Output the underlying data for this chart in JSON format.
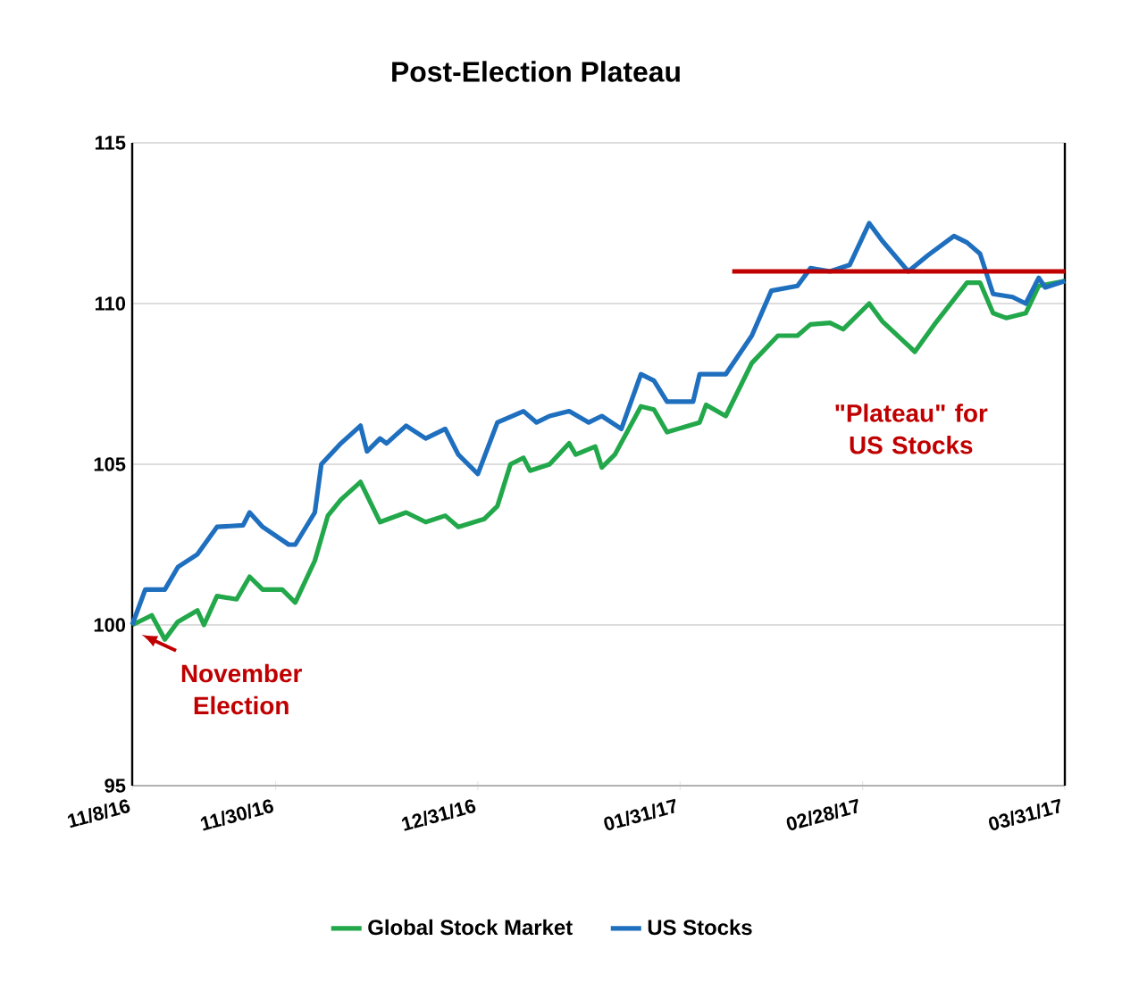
{
  "chart_data": {
    "type": "line",
    "title": "Post-Election Plateau",
    "xlim": [
      "2016-11-08",
      "2017-03-31"
    ],
    "xticks": [
      {
        "value": "2016-11-08",
        "label": "11/8/16"
      },
      {
        "value": "2016-11-30",
        "label": "11/30/16"
      },
      {
        "value": "2016-12-31",
        "label": "12/31/16"
      },
      {
        "value": "2017-01-31",
        "label": "01/31/17"
      },
      {
        "value": "2017-02-28",
        "label": "02/28/17"
      },
      {
        "value": "2017-03-31",
        "label": "03/31/17"
      }
    ],
    "ylim": [
      95,
      115
    ],
    "yticks": [
      95,
      100,
      105,
      110,
      115
    ],
    "grid": "y",
    "legend": "bottom",
    "series": [
      {
        "name": "Global Stock Market",
        "color": "#22a84a",
        "x": [
          "2016-11-08",
          "2016-11-11",
          "2016-11-13",
          "2016-11-15",
          "2016-11-18",
          "2016-11-19",
          "2016-11-21",
          "2016-11-24",
          "2016-11-26",
          "2016-11-28",
          "2016-12-01",
          "2016-12-03",
          "2016-12-06",
          "2016-12-08",
          "2016-12-10",
          "2016-12-13",
          "2016-12-16",
          "2016-12-20",
          "2016-12-23",
          "2016-12-26",
          "2016-12-28",
          "2017-01-01",
          "2017-01-03",
          "2017-01-05",
          "2017-01-07",
          "2017-01-08",
          "2017-01-11",
          "2017-01-14",
          "2017-01-15",
          "2017-01-18",
          "2017-01-19",
          "2017-01-21",
          "2017-01-25",
          "2017-01-27",
          "2017-01-29",
          "2017-02-03",
          "2017-02-04",
          "2017-02-07",
          "2017-02-11",
          "2017-02-15",
          "2017-02-18",
          "2017-02-20",
          "2017-02-23",
          "2017-02-25",
          "2017-03-01",
          "2017-03-03",
          "2017-03-08",
          "2017-03-11",
          "2017-03-16",
          "2017-03-18",
          "2017-03-20",
          "2017-03-22",
          "2017-03-25",
          "2017-03-27",
          "2017-03-31"
        ],
        "values": [
          100.0,
          100.3,
          99.55,
          100.1,
          100.45,
          100.0,
          100.9,
          100.8,
          101.5,
          101.1,
          101.1,
          100.7,
          102.0,
          103.4,
          103.9,
          104.45,
          103.2,
          103.5,
          103.2,
          103.4,
          103.05,
          103.3,
          103.7,
          105.0,
          105.2,
          104.8,
          105.0,
          105.65,
          105.3,
          105.55,
          104.9,
          105.3,
          106.8,
          106.7,
          106.0,
          106.3,
          106.85,
          106.5,
          108.15,
          109.0,
          109.0,
          109.35,
          109.4,
          109.2,
          110.0,
          109.45,
          108.5,
          109.35,
          110.65,
          110.65,
          109.7,
          109.55,
          109.7,
          110.55,
          110.7
        ]
      },
      {
        "name": "US Stocks",
        "color": "#1f6fbf",
        "x": [
          "2016-11-08",
          "2016-11-10",
          "2016-11-13",
          "2016-11-15",
          "2016-11-18",
          "2016-11-21",
          "2016-11-25",
          "2016-11-26",
          "2016-11-28",
          "2016-12-02",
          "2016-12-03",
          "2016-12-06",
          "2016-12-07",
          "2016-12-10",
          "2016-12-13",
          "2016-12-14",
          "2016-12-16",
          "2016-12-17",
          "2016-12-20",
          "2016-12-23",
          "2016-12-26",
          "2016-12-28",
          "2016-12-31",
          "2017-01-03",
          "2017-01-07",
          "2017-01-09",
          "2017-01-11",
          "2017-01-14",
          "2017-01-17",
          "2017-01-19",
          "2017-01-22",
          "2017-01-25",
          "2017-01-27",
          "2017-01-29",
          "2017-02-02",
          "2017-02-03",
          "2017-02-07",
          "2017-02-11",
          "2017-02-14",
          "2017-02-18",
          "2017-02-20",
          "2017-02-23",
          "2017-02-26",
          "2017-03-01",
          "2017-03-03",
          "2017-03-07",
          "2017-03-10",
          "2017-03-14",
          "2017-03-16",
          "2017-03-18",
          "2017-03-20",
          "2017-03-23",
          "2017-03-25",
          "2017-03-27",
          "2017-03-28",
          "2017-03-31"
        ],
        "values": [
          100.0,
          101.1,
          101.1,
          101.8,
          102.2,
          103.05,
          103.1,
          103.5,
          103.05,
          102.5,
          102.5,
          103.5,
          105.0,
          105.65,
          106.2,
          105.4,
          105.8,
          105.65,
          106.2,
          105.8,
          106.1,
          105.3,
          104.7,
          106.3,
          106.65,
          106.3,
          106.5,
          106.65,
          106.3,
          106.5,
          106.1,
          107.8,
          107.6,
          106.95,
          106.95,
          107.8,
          107.8,
          109.0,
          110.4,
          110.55,
          111.1,
          111.0,
          111.2,
          112.5,
          111.95,
          111.0,
          111.5,
          112.1,
          111.9,
          111.55,
          110.3,
          110.2,
          110.0,
          110.8,
          110.5,
          110.7
        ]
      },
      {
        "type": "line",
        "color": "#c00000",
        "x": [
          "2017-02-08",
          "2017-03-31"
        ],
        "values": [
          111,
          111
        ]
      }
    ],
    "annotations": [
      "November Election",
      "\"Plateau\" for US Stocks"
    ]
  }
}
